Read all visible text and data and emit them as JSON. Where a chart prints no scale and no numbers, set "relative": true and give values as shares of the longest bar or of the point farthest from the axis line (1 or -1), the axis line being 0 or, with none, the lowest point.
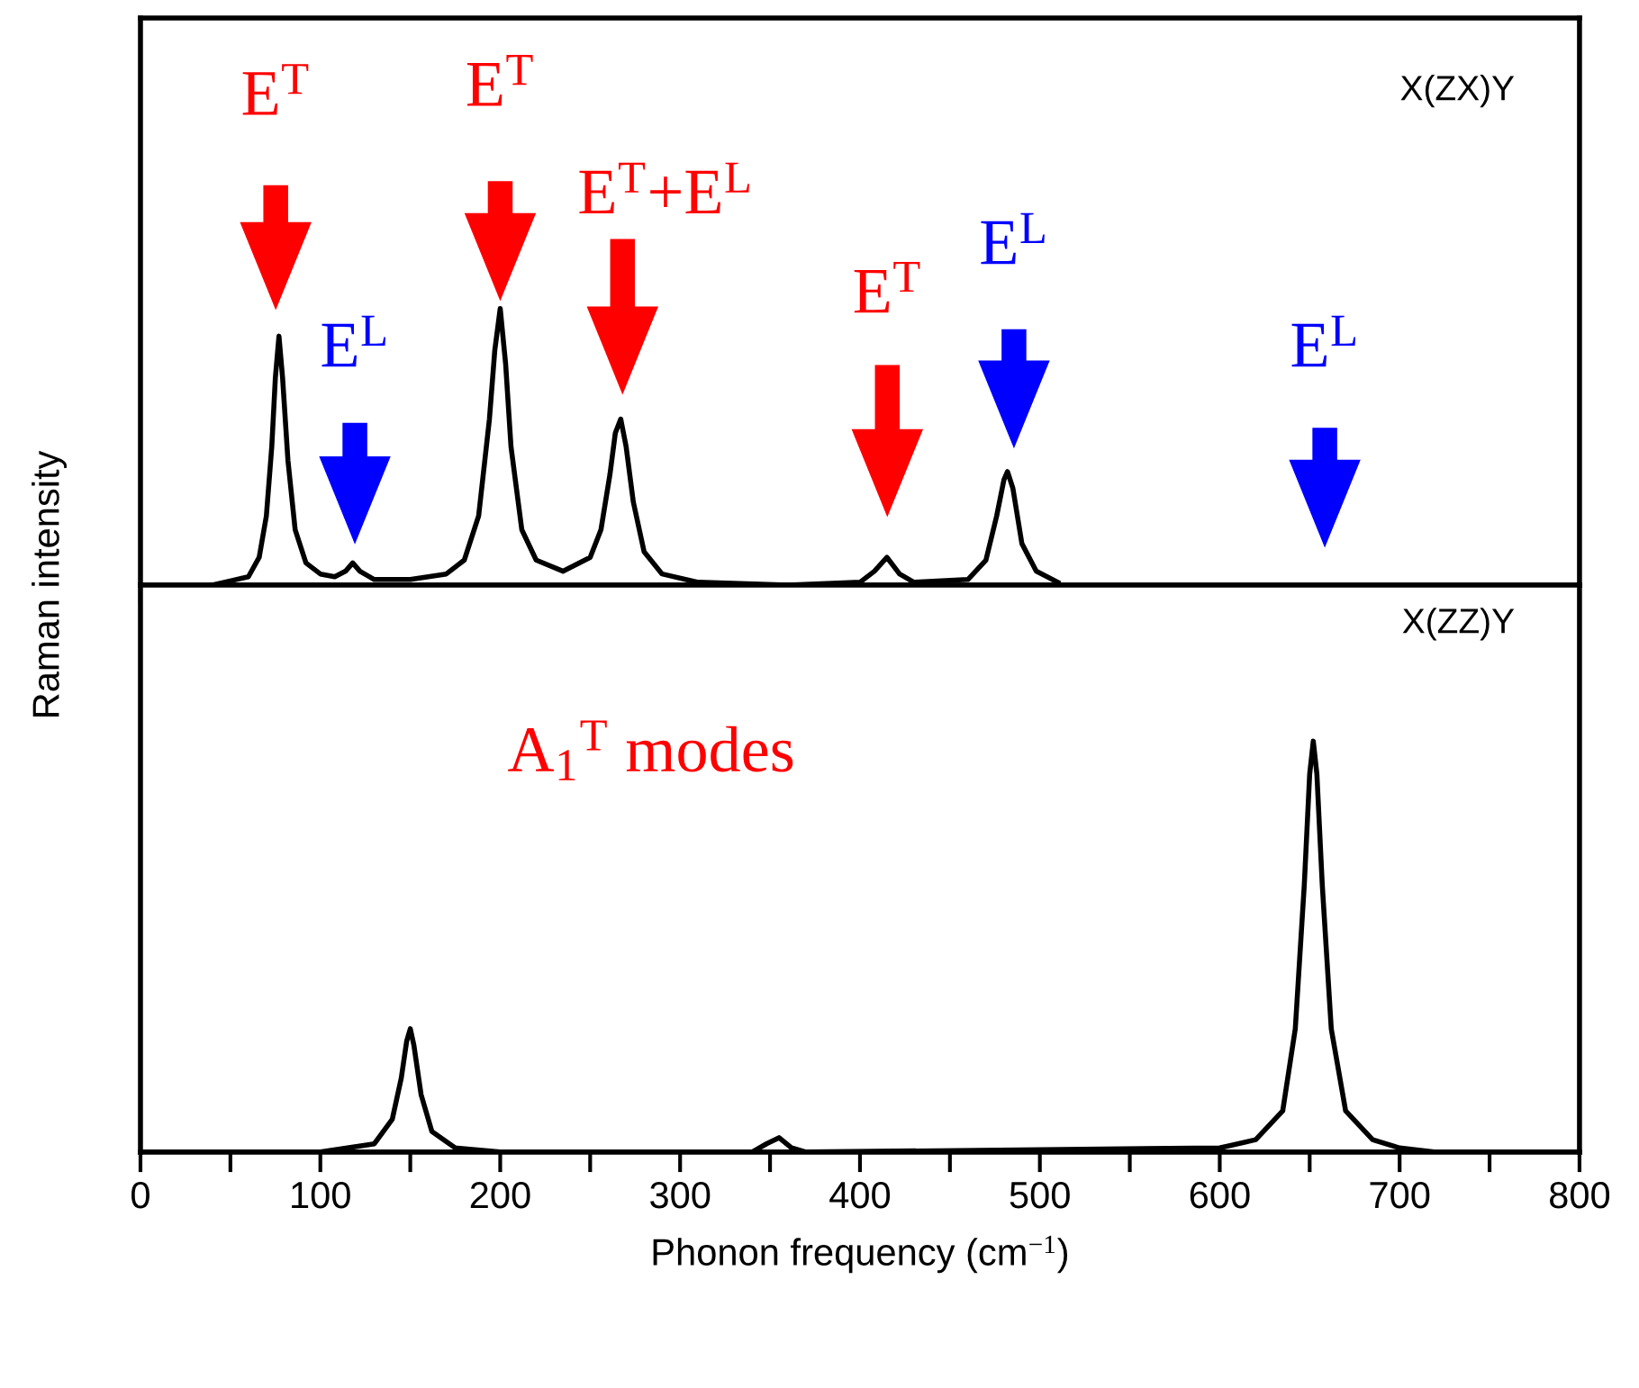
{
  "chart_data": [
    {
      "type": "line",
      "title": "X(ZX)Y",
      "ylabel": "Raman intensity",
      "relative": true,
      "tick_labels": false,
      "xlim": [
        0,
        800
      ],
      "xticks": [
        0,
        {
          "value": 50,
          "label": null
        },
        100,
        {
          "value": 150,
          "label": null
        },
        200,
        {
          "value": 250,
          "label": null
        },
        300,
        {
          "value": 350,
          "label": null
        },
        400,
        {
          "value": 450,
          "label": null
        },
        500,
        {
          "value": 550,
          "label": null
        },
        600,
        {
          "value": 650,
          "label": null
        },
        700,
        {
          "value": 750,
          "label": null
        },
        800
      ],
      "series": [
        {
          "color": "#000000",
          "x": [
            40,
            60,
            66,
            70,
            73,
            75,
            77,
            79,
            82,
            86,
            92,
            100,
            108,
            114,
            118,
            122,
            130,
            150,
            170,
            180,
            188,
            194,
            197,
            200,
            203,
            206,
            212,
            220,
            235,
            250,
            256,
            261,
            264,
            267,
            270,
            274,
            280,
            290,
            310,
            360,
            400,
            408,
            415,
            422,
            430,
            460,
            470,
            476,
            480,
            482,
            485,
            490,
            498,
            510
          ],
          "values": [
            0,
            0.03,
            0.1,
            0.25,
            0.5,
            0.75,
            0.9,
            0.75,
            0.45,
            0.2,
            0.08,
            0.04,
            0.03,
            0.05,
            0.08,
            0.05,
            0.02,
            0.02,
            0.04,
            0.09,
            0.25,
            0.6,
            0.85,
            1,
            0.8,
            0.5,
            0.2,
            0.09,
            0.05,
            0.1,
            0.2,
            0.4,
            0.55,
            0.6,
            0.5,
            0.3,
            0.12,
            0.04,
            0.01,
            0,
            0.01,
            0.05,
            0.1,
            0.04,
            0.01,
            0.02,
            0.09,
            0.25,
            0.38,
            0.41,
            0.35,
            0.15,
            0.05,
            0.01
          ]
        }
      ],
      "annotations": [
        "E$^{T}$",
        "E$^{L}$",
        "E$^{T}$",
        "E$^{T}$+E$^{L}$",
        "E$^{T}$",
        "E$^{L}$",
        "E$^{L}$"
      ]
    },
    {
      "type": "line",
      "title": "X(ZZ)Y",
      "xlabel": "Phonon frequency (cm$^{−1}$)",
      "relative": true,
      "tick_labels": "x",
      "xlim": [
        0,
        800
      ],
      "xticks": [
        0,
        {
          "value": 50,
          "label": null
        },
        100,
        {
          "value": 150,
          "label": null
        },
        200,
        {
          "value": 250,
          "label": null
        },
        300,
        {
          "value": 350,
          "label": null
        },
        400,
        {
          "value": 450,
          "label": null
        },
        500,
        {
          "value": 550,
          "label": null
        },
        600,
        {
          "value": 650,
          "label": null
        },
        700,
        {
          "value": 750,
          "label": null
        },
        800
      ],
      "series": [
        {
          "color": "#000000",
          "x": [
            100,
            130,
            140,
            145,
            148,
            150,
            152,
            156,
            162,
            175,
            200,
            340,
            348,
            355,
            362,
            370,
            600,
            620,
            635,
            642,
            647,
            650,
            652,
            654,
            657,
            662,
            670,
            685,
            700,
            720
          ],
          "values": [
            0,
            0.02,
            0.08,
            0.18,
            0.27,
            0.3,
            0.26,
            0.14,
            0.05,
            0.01,
            0,
            0,
            0.02,
            0.035,
            0.01,
            0,
            0.01,
            0.03,
            0.1,
            0.3,
            0.65,
            0.92,
            1,
            0.92,
            0.65,
            0.3,
            0.1,
            0.03,
            0.01,
            0
          ]
        }
      ],
      "annotations": [
        "A$_{1}$$^{T}$ modes"
      ]
    }
  ]
}
